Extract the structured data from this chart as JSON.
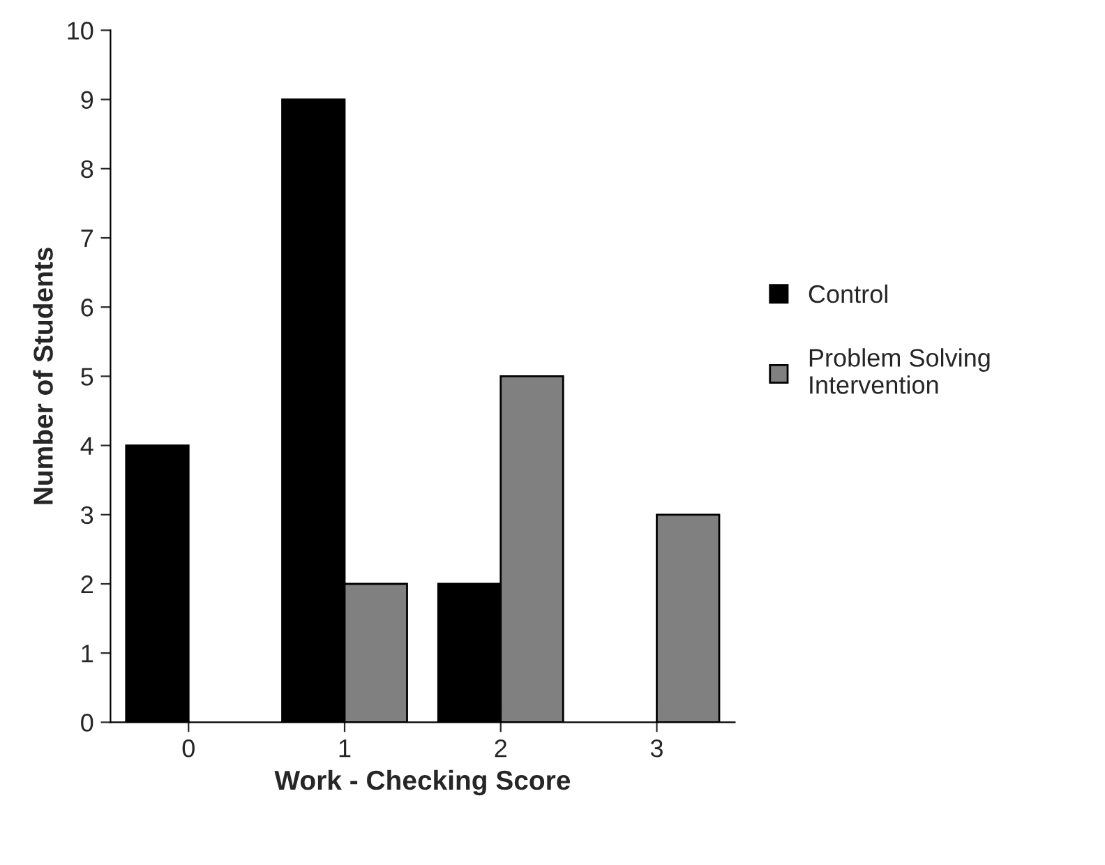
{
  "chart_data": {
    "type": "bar",
    "xlabel": "Work - Checking Score",
    "ylabel": "Number of Students",
    "categories": [
      "0",
      "1",
      "2",
      "3"
    ],
    "series": [
      {
        "name": "Control",
        "color": "#000000",
        "values": [
          4,
          9,
          2,
          0
        ]
      },
      {
        "name": "Problem Solving\nIntervention",
        "color": "#808080",
        "values": [
          0,
          2,
          5,
          3
        ]
      }
    ],
    "ylim": [
      0,
      10
    ],
    "yticks": [
      0,
      1,
      2,
      3,
      4,
      5,
      6,
      7,
      8,
      9,
      10
    ],
    "grid": false,
    "legend": "right"
  }
}
